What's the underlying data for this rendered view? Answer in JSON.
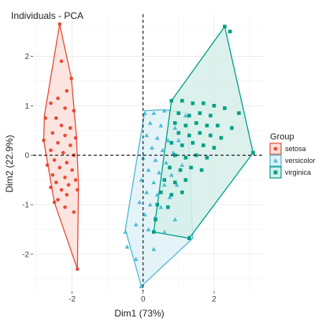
{
  "chart_data": {
    "type": "scatter",
    "title": "Individuals -  PCA",
    "xlabel": "Dim1 (73%)",
    "ylabel": "Dim2 (22.9%)",
    "xlim": [
      -3.1,
      3.4
    ],
    "ylim": [
      -2.75,
      2.85
    ],
    "x_ticks": [
      -2,
      0,
      2
    ],
    "y_ticks": [
      -2,
      -1,
      0,
      1,
      2
    ],
    "x_tick_labels": [
      "-2",
      "0",
      "2"
    ],
    "y_tick_labels": [
      "-2",
      "-1",
      "0",
      "1",
      "2"
    ],
    "grid": true,
    "reference_lines": {
      "x": 0,
      "y": 0,
      "style": "dashed"
    },
    "legend": {
      "title": "Group",
      "position": "right"
    },
    "series": [
      {
        "name": "setosa",
        "marker": "circle",
        "color": "#E64B35",
        "fill": "#FBE0DC",
        "hull": [
          [
            -2.35,
            2.65
          ],
          [
            -2.02,
            1.55
          ],
          [
            -1.88,
            0.4
          ],
          [
            -1.82,
            -0.6
          ],
          [
            -1.85,
            -2.3
          ],
          [
            -2.5,
            -0.95
          ],
          [
            -2.8,
            0.3
          ],
          [
            -2.78,
            0.8
          ]
        ],
        "points": [
          [
            -2.35,
            2.65
          ],
          [
            -2.3,
            1.9
          ],
          [
            -2.02,
            1.55
          ],
          [
            -2.15,
            1.3
          ],
          [
            -2.4,
            1.15
          ],
          [
            -2.6,
            1.05
          ],
          [
            -2.2,
            0.95
          ],
          [
            -1.95,
            0.9
          ],
          [
            -2.45,
            0.75
          ],
          [
            -2.75,
            0.75
          ],
          [
            -2.3,
            0.6
          ],
          [
            -2.05,
            0.55
          ],
          [
            -2.55,
            0.45
          ],
          [
            -2.2,
            0.4
          ],
          [
            -1.9,
            0.35
          ],
          [
            -2.8,
            0.3
          ],
          [
            -2.4,
            0.25
          ],
          [
            -2.05,
            0.2
          ],
          [
            -2.6,
            0.1
          ],
          [
            -2.25,
            0.05
          ],
          [
            -1.95,
            0.0
          ],
          [
            -2.5,
            -0.1
          ],
          [
            -2.15,
            -0.15
          ],
          [
            -2.7,
            -0.2
          ],
          [
            -2.35,
            -0.25
          ],
          [
            -2.0,
            -0.3
          ],
          [
            -2.55,
            -0.4
          ],
          [
            -2.2,
            -0.45
          ],
          [
            -1.9,
            -0.5
          ],
          [
            -2.45,
            -0.55
          ],
          [
            -2.1,
            -0.6
          ],
          [
            -2.6,
            -0.65
          ],
          [
            -2.3,
            -0.7
          ],
          [
            -1.85,
            -0.7
          ],
          [
            -2.15,
            -0.8
          ],
          [
            -2.4,
            -0.9
          ],
          [
            -2.5,
            -0.95
          ],
          [
            -2.2,
            -1.05
          ],
          [
            -1.95,
            -1.15
          ],
          [
            -1.85,
            -2.3
          ]
        ]
      },
      {
        "name": "versicolor",
        "marker": "triangle",
        "color": "#4DBBD5",
        "fill": "#DFF1F6",
        "hull": [
          [
            0.6,
            0.92
          ],
          [
            1.25,
            0.85
          ],
          [
            1.4,
            -1.68
          ],
          [
            -0.05,
            -2.65
          ],
          [
            -0.5,
            -1.5
          ],
          [
            0.05,
            0.9
          ]
        ],
        "points": [
          [
            0.05,
            0.85
          ],
          [
            0.3,
            0.85
          ],
          [
            0.6,
            0.9
          ],
          [
            1.2,
            0.8
          ],
          [
            0.2,
            0.65
          ],
          [
            0.5,
            0.6
          ],
          [
            0.9,
            0.55
          ],
          [
            0.1,
            0.4
          ],
          [
            0.4,
            0.35
          ],
          [
            0.7,
            0.3
          ],
          [
            1.0,
            0.3
          ],
          [
            0.25,
            0.15
          ],
          [
            0.55,
            0.1
          ],
          [
            0.85,
            0.05
          ],
          [
            0.0,
            -0.05
          ],
          [
            0.35,
            -0.1
          ],
          [
            0.65,
            -0.15
          ],
          [
            1.1,
            -0.2
          ],
          [
            0.15,
            -0.3
          ],
          [
            0.45,
            -0.35
          ],
          [
            0.8,
            -0.4
          ],
          [
            -0.05,
            -0.5
          ],
          [
            0.3,
            -0.55
          ],
          [
            0.6,
            -0.6
          ],
          [
            0.95,
            -0.6
          ],
          [
            0.1,
            -0.75
          ],
          [
            0.4,
            -0.8
          ],
          [
            0.75,
            -0.85
          ],
          [
            -0.1,
            -0.95
          ],
          [
            0.2,
            -1.0
          ],
          [
            0.5,
            -1.05
          ],
          [
            0.05,
            -1.2
          ],
          [
            0.35,
            -1.25
          ],
          [
            0.9,
            -1.3
          ],
          [
            -0.2,
            -1.4
          ],
          [
            0.15,
            -1.5
          ],
          [
            0.6,
            -1.55
          ],
          [
            -0.5,
            -1.55
          ],
          [
            -0.45,
            -1.85
          ],
          [
            -0.2,
            -2.1
          ],
          [
            0.3,
            -1.9
          ],
          [
            1.3,
            -1.65
          ],
          [
            -0.05,
            -2.65
          ]
        ]
      },
      {
        "name": "virginica",
        "marker": "square",
        "color": "#00A087",
        "fill": "#D6EFE9",
        "hull": [
          [
            2.3,
            2.6
          ],
          [
            3.1,
            0.05
          ],
          [
            1.3,
            -1.68
          ],
          [
            0.3,
            -1.55
          ],
          [
            0.8,
            1.1
          ]
        ],
        "points": [
          [
            2.3,
            2.6
          ],
          [
            2.45,
            2.5
          ],
          [
            0.8,
            1.1
          ],
          [
            1.1,
            1.1
          ],
          [
            1.4,
            1.05
          ],
          [
            1.7,
            1.05
          ],
          [
            2.0,
            1.0
          ],
          [
            2.3,
            0.95
          ],
          [
            1.0,
            0.85
          ],
          [
            1.3,
            0.8
          ],
          [
            1.6,
            0.85
          ],
          [
            1.9,
            0.8
          ],
          [
            2.7,
            0.85
          ],
          [
            0.9,
            0.65
          ],
          [
            1.2,
            0.6
          ],
          [
            1.5,
            0.65
          ],
          [
            1.8,
            0.6
          ],
          [
            2.1,
            0.6
          ],
          [
            2.5,
            0.55
          ],
          [
            1.0,
            0.45
          ],
          [
            1.3,
            0.4
          ],
          [
            1.6,
            0.45
          ],
          [
            1.9,
            0.4
          ],
          [
            2.2,
            0.35
          ],
          [
            0.8,
            0.25
          ],
          [
            1.1,
            0.2
          ],
          [
            1.4,
            0.25
          ],
          [
            1.7,
            0.2
          ],
          [
            2.0,
            0.15
          ],
          [
            3.1,
            0.05
          ],
          [
            0.9,
            0.0
          ],
          [
            1.2,
            -0.05
          ],
          [
            1.5,
            0.0
          ],
          [
            1.8,
            -0.05
          ],
          [
            0.75,
            -0.25
          ],
          [
            1.05,
            -0.3
          ],
          [
            1.35,
            -0.25
          ],
          [
            1.65,
            -0.3
          ],
          [
            0.6,
            -0.5
          ],
          [
            0.9,
            -0.55
          ],
          [
            1.2,
            -0.5
          ],
          [
            0.5,
            -0.75
          ],
          [
            0.8,
            -0.8
          ],
          [
            1.1,
            -0.75
          ],
          [
            0.4,
            -1.0
          ],
          [
            0.7,
            -1.05
          ],
          [
            0.35,
            -1.3
          ],
          [
            0.3,
            -1.55
          ],
          [
            1.3,
            -1.68
          ]
        ]
      }
    ]
  }
}
